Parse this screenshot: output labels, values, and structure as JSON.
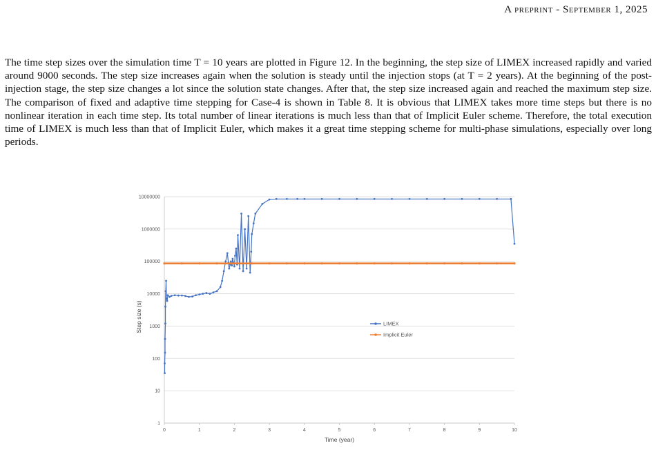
{
  "header": {
    "running_head": "A preprint - September 1, 2025"
  },
  "paragraph": {
    "text": "The time step sizes over the simulation time T = 10 years are plotted in Figure 12. In the beginning, the step size of LIMEX increased rapidly and varied around 9000 seconds. The step size increases again when the solution is steady until the injection stops (at T = 2 years). At the beginning of the post-injection stage, the step size changes a lot since the solution state changes. After that, the step size increased again and reached the maximum step size. The comparison of fixed and adaptive time stepping for Case-4 is shown in Table 8. It is obvious that LIMEX takes more time steps but there is no nonlinear iteration in each time step. Its total number of linear iterations is much less than that of Implicit Euler scheme. Therefore, the total execution time of LIMEX is much less than that of Implicit Euler, which makes it a great time stepping scheme for multi-phase simulations, especially over long periods."
  },
  "chart_data": {
    "type": "line",
    "xlabel": "Time (year)",
    "ylabel": "Step size (s)",
    "xlim": [
      0,
      10
    ],
    "ylim": [
      1,
      10000000
    ],
    "y_scale": "log",
    "x_ticks": [
      "0",
      "1",
      "2",
      "3",
      "4",
      "5",
      "6",
      "7",
      "8",
      "9",
      "10"
    ],
    "y_ticks": [
      "1",
      "10",
      "100",
      "1000",
      "10000",
      "100000",
      "1000000",
      "10000000"
    ],
    "grid": "horizontal",
    "legend_position": "right-middle",
    "series": [
      {
        "name": "LIMEX",
        "color": "#4472C4",
        "marker": "dot",
        "x": [
          0.01,
          0.01,
          0.02,
          0.02,
          0.03,
          0.03,
          0.04,
          0.05,
          0.06,
          0.08,
          0.1,
          0.15,
          0.2,
          0.3,
          0.4,
          0.5,
          0.6,
          0.7,
          0.8,
          0.9,
          1.0,
          1.1,
          1.2,
          1.3,
          1.4,
          1.5,
          1.6,
          1.65,
          1.7,
          1.75,
          1.8,
          1.83,
          1.85,
          1.88,
          1.9,
          1.93,
          1.95,
          1.98,
          2.0,
          2.02,
          2.05,
          2.08,
          2.1,
          2.15,
          2.2,
          2.25,
          2.3,
          2.35,
          2.4,
          2.45,
          2.48,
          2.5,
          2.55,
          2.6,
          2.8,
          3.0,
          3.2,
          3.5,
          3.8,
          4.0,
          4.5,
          5.0,
          5.5,
          6.0,
          6.5,
          7.0,
          7.5,
          8.0,
          8.5,
          9.0,
          9.5,
          9.9,
          10.0
        ],
        "y": [
          35,
          70,
          150,
          400,
          1200,
          4000,
          12000,
          25000,
          7000,
          6000,
          9000,
          8000,
          8600,
          9000,
          8800,
          8800,
          8500,
          8000,
          8200,
          9000,
          9500,
          10000,
          10500,
          10000,
          11000,
          12000,
          16000,
          25000,
          50000,
          100000,
          180000,
          90000,
          60000,
          80000,
          100000,
          75000,
          120000,
          90000,
          70000,
          150000,
          250000,
          80000,
          650000,
          60000,
          3000000,
          50000,
          1000000,
          60000,
          2500000,
          45000,
          200000,
          700000,
          1500000,
          3000000,
          6000000,
          8200000,
          8500000,
          8500000,
          8500000,
          8500000,
          8500000,
          8500000,
          8500000,
          8500000,
          8500000,
          8500000,
          8500000,
          8500000,
          8500000,
          8500000,
          8500000,
          8500000,
          350000
        ]
      },
      {
        "name": "Implicit Euler",
        "color": "#ED7D31",
        "marker": "dot",
        "x": [
          0,
          0.5,
          1,
          1.5,
          2,
          2.5,
          3,
          3.5,
          4,
          4.5,
          5,
          5.5,
          6,
          6.5,
          7,
          7.5,
          8,
          8.5,
          9,
          9.5,
          10
        ],
        "y": [
          86400,
          86400,
          86400,
          86400,
          86400,
          86400,
          86400,
          86400,
          86400,
          86400,
          86400,
          86400,
          86400,
          86400,
          86400,
          86400,
          86400,
          86400,
          86400,
          86400,
          86400
        ]
      }
    ]
  }
}
